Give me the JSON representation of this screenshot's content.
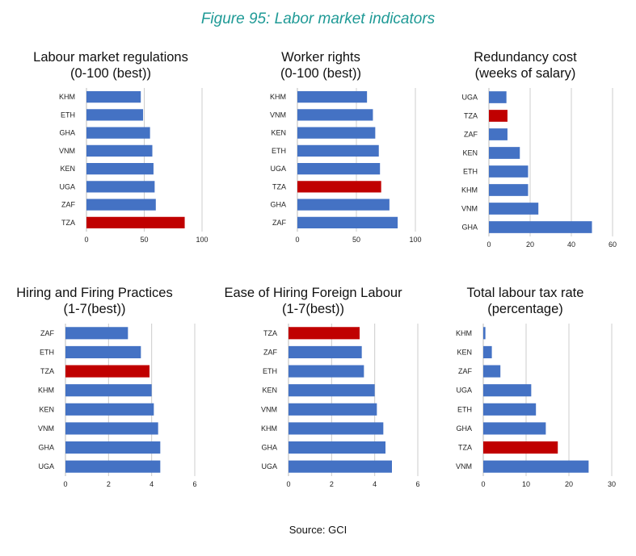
{
  "figure_title": "Figure 95: Labor market indicators",
  "source": "Source: GCI",
  "colors": {
    "bar": "#4472c4",
    "highlight": "#c00000",
    "grid": "#cccccc"
  },
  "chart_data": [
    {
      "type": "bar",
      "orientation": "horizontal",
      "title_line1": "Labour market regulations",
      "title_line2": "(0-100 (best))",
      "categories": [
        "KHM",
        "ETH",
        "GHA",
        "VNM",
        "KEN",
        "UGA",
        "ZAF",
        "TZA"
      ],
      "values": [
        47,
        49,
        55,
        57,
        58,
        59,
        60,
        85
      ],
      "highlight": "TZA",
      "xlim": [
        0,
        100
      ],
      "xticks": [
        0,
        50,
        100
      ]
    },
    {
      "type": "bar",
      "orientation": "horizontal",
      "title_line1": "Worker rights",
      "title_line2": "(0-100 (best))",
      "categories": [
        "KHM",
        "VNM",
        "KEN",
        "ETH",
        "UGA",
        "TZA",
        "GHA",
        "ZAF"
      ],
      "values": [
        59,
        64,
        66,
        69,
        70,
        71,
        78,
        85
      ],
      "highlight": "TZA",
      "xlim": [
        0,
        100
      ],
      "xticks": [
        0,
        50,
        100
      ]
    },
    {
      "type": "bar",
      "orientation": "horizontal",
      "title_line1": "Redundancy cost",
      "title_line2": "(weeks of salary)",
      "categories": [
        "UGA",
        "TZA",
        "ZAF",
        "KEN",
        "ETH",
        "KHM",
        "VNM",
        "GHA"
      ],
      "values": [
        8.5,
        9,
        9,
        15,
        19,
        19,
        24,
        50
      ],
      "highlight": "TZA",
      "xlim": [
        0,
        60
      ],
      "xticks": [
        0,
        20,
        40,
        60
      ]
    },
    {
      "type": "bar",
      "orientation": "horizontal",
      "title_line1": "Hiring and Firing Practices",
      "title_line2": "(1-7(best))",
      "categories": [
        "ZAF",
        "ETH",
        "TZA",
        "KHM",
        "KEN",
        "VNM",
        "GHA",
        "UGA"
      ],
      "values": [
        2.9,
        3.5,
        3.9,
        4.0,
        4.1,
        4.3,
        4.4,
        4.4
      ],
      "highlight": "TZA",
      "xlim": [
        0,
        6
      ],
      "xticks": [
        0,
        2,
        4,
        6
      ]
    },
    {
      "type": "bar",
      "orientation": "horizontal",
      "title_line1": "Ease of Hiring Foreign Labour",
      "title_line2": "(1-7(best))",
      "categories": [
        "TZA",
        "ZAF",
        "ETH",
        "KEN",
        "VNM",
        "KHM",
        "GHA",
        "UGA"
      ],
      "values": [
        3.3,
        3.4,
        3.5,
        4.0,
        4.1,
        4.4,
        4.5,
        4.8
      ],
      "highlight": "TZA",
      "xlim": [
        0,
        6
      ],
      "xticks": [
        0,
        2,
        4,
        6
      ]
    },
    {
      "type": "bar",
      "orientation": "horizontal",
      "title_line1": "Total labour tax rate",
      "title_line2": "(percentage)",
      "categories": [
        "KHM",
        "KEN",
        "ZAF",
        "UGA",
        "ETH",
        "GHA",
        "TZA",
        "VNM"
      ],
      "values": [
        0.5,
        2,
        4,
        11.2,
        12.3,
        14.6,
        17.4,
        24.6
      ],
      "highlight": "TZA",
      "xlim": [
        0,
        30
      ],
      "xticks": [
        0,
        10,
        20,
        30
      ]
    }
  ]
}
